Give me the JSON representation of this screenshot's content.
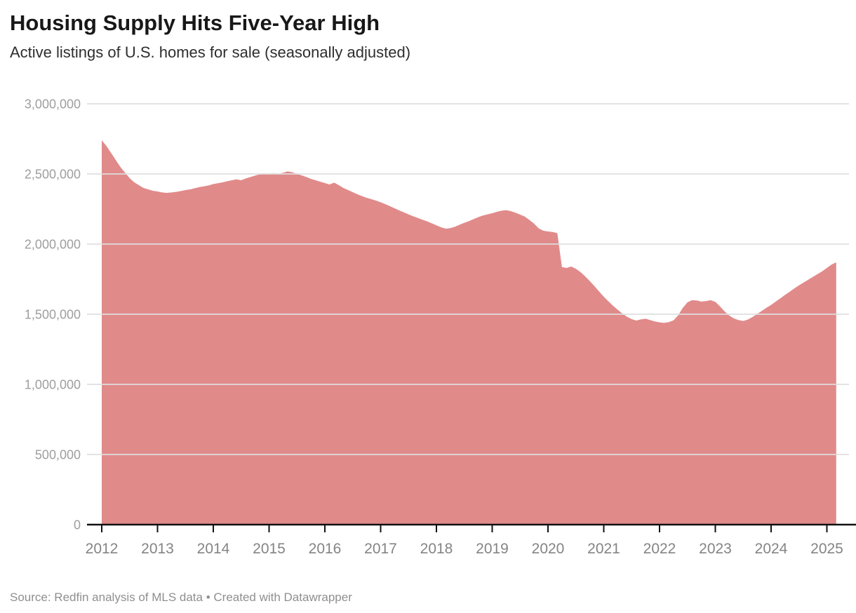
{
  "header": {
    "title": "Housing Supply Hits Five-Year High",
    "subtitle": "Active listings of U.S. homes for sale (seasonally adjusted)"
  },
  "footer": {
    "source": "Source: Redfin analysis of MLS data • Created with Datawrapper"
  },
  "chart_data": {
    "type": "area",
    "title": "Housing Supply Hits Five-Year High",
    "subtitle": "Active listings of U.S. homes for sale (seasonally adjusted)",
    "source": "Source: Redfin analysis of MLS data • Created with Datawrapper",
    "x_start": "2012-01",
    "x_end": "2025-03",
    "x_interval": "monthly",
    "ylim": [
      0,
      3000000
    ],
    "grid": "horizontal-gridlines-over-area",
    "legend": "none",
    "area_color": "#e18a8a",
    "baseline_color": "#111111",
    "gridline_color": "rgba(222,222,222,0.85)",
    "axis_label_color": "#9e9e9e",
    "x_label_color": "#848484",
    "y_ticks": [
      {
        "value": 0,
        "label": "0"
      },
      {
        "value": 500000,
        "label": "500,000"
      },
      {
        "value": 1000000,
        "label": "1,000,000"
      },
      {
        "value": 1500000,
        "label": "1,500,000"
      },
      {
        "value": 2000000,
        "label": "2,000,000"
      },
      {
        "value": 2500000,
        "label": "2,500,000"
      },
      {
        "value": 3000000,
        "label": "3,000,000"
      }
    ],
    "x_ticks": [
      "2012",
      "2013",
      "2014",
      "2015",
      "2016",
      "2017",
      "2018",
      "2019",
      "2020",
      "2021",
      "2022",
      "2023",
      "2024",
      "2025"
    ],
    "values": [
      2740000,
      2700000,
      2650000,
      2600000,
      2550000,
      2510000,
      2470000,
      2440000,
      2420000,
      2400000,
      2390000,
      2380000,
      2375000,
      2368000,
      2365000,
      2368000,
      2372000,
      2378000,
      2385000,
      2390000,
      2398000,
      2406000,
      2412000,
      2418000,
      2428000,
      2434000,
      2440000,
      2448000,
      2455000,
      2462000,
      2455000,
      2468000,
      2478000,
      2488000,
      2498000,
      2505000,
      2500000,
      2506000,
      2500000,
      2508000,
      2518000,
      2512000,
      2500000,
      2490000,
      2478000,
      2465000,
      2455000,
      2445000,
      2435000,
      2425000,
      2438000,
      2420000,
      2400000,
      2385000,
      2370000,
      2355000,
      2342000,
      2330000,
      2320000,
      2310000,
      2298000,
      2285000,
      2270000,
      2255000,
      2240000,
      2226000,
      2212000,
      2198000,
      2186000,
      2174000,
      2162000,
      2148000,
      2134000,
      2120000,
      2110000,
      2114000,
      2124000,
      2138000,
      2152000,
      2164000,
      2178000,
      2192000,
      2204000,
      2212000,
      2220000,
      2230000,
      2238000,
      2242000,
      2235000,
      2224000,
      2210000,
      2196000,
      2172000,
      2146000,
      2112000,
      2095000,
      2090000,
      2086000,
      2078000,
      1836000,
      1830000,
      1840000,
      1824000,
      1800000,
      1770000,
      1736000,
      1700000,
      1662000,
      1625000,
      1592000,
      1560000,
      1532000,
      1505000,
      1482000,
      1465000,
      1455000,
      1463000,
      1468000,
      1458000,
      1448000,
      1442000,
      1438000,
      1444000,
      1456000,
      1492000,
      1545000,
      1585000,
      1600000,
      1598000,
      1590000,
      1594000,
      1600000,
      1588000,
      1556000,
      1520000,
      1490000,
      1470000,
      1458000,
      1452000,
      1462000,
      1480000,
      1502000,
      1524000,
      1546000,
      1566000,
      1590000,
      1614000,
      1638000,
      1660000,
      1684000,
      1706000,
      1726000,
      1746000,
      1766000,
      1786000,
      1806000,
      1830000,
      1854000,
      1870000
    ]
  }
}
